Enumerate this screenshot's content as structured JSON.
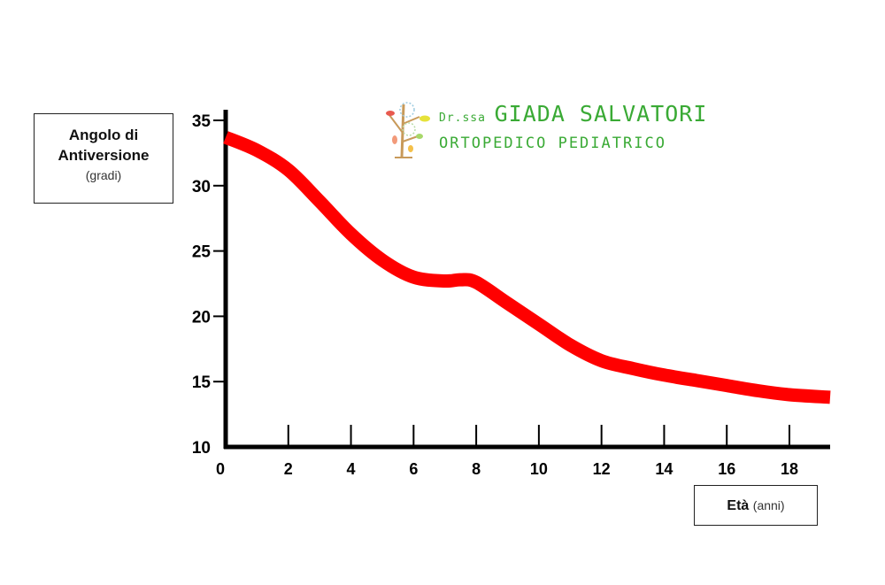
{
  "logo": {
    "prefix": "Dr.ssa",
    "name": "GIADA SALVATORI",
    "subtitle": "ORTOPEDICO PEDIATRICO",
    "color": "#3aaa35"
  },
  "chart_data": {
    "type": "line",
    "title": "",
    "ylabel_line1": "Angolo di",
    "ylabel_line2": "Antiversione",
    "ylabel_unit": "(gradi)",
    "xlabel": "Età",
    "xlabel_unit": "(anni)",
    "xlim": [
      0,
      19.3
    ],
    "ylim": [
      10,
      35
    ],
    "x_ticks": [
      0,
      2,
      4,
      6,
      8,
      10,
      12,
      14,
      16,
      18
    ],
    "y_ticks": [
      10,
      15,
      20,
      25,
      30,
      35
    ],
    "grid": false,
    "legend": "none",
    "series": [
      {
        "color": "#ff0000",
        "x": [
          0,
          1,
          2,
          3,
          4,
          5,
          6,
          7,
          7.5,
          8,
          9,
          10,
          11,
          12,
          13,
          14,
          15,
          16,
          17,
          18,
          19.3
        ],
        "y": [
          33.7,
          32.7,
          31.2,
          28.8,
          26.3,
          24.3,
          23.0,
          22.7,
          22.8,
          22.6,
          21.0,
          19.4,
          17.8,
          16.6,
          16.0,
          15.5,
          15.1,
          14.7,
          14.3,
          14.0,
          13.8
        ]
      }
    ]
  }
}
